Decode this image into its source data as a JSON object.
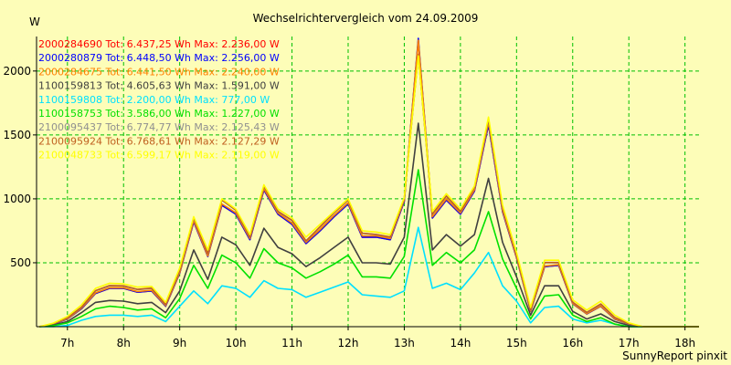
{
  "chart_data": {
    "type": "line",
    "title": "Wechselrichtervergleich vom 24.09.2009",
    "ylabel": "W",
    "footer": "SunnyReport pinxit",
    "ylim": [
      0,
      2270
    ],
    "yticks": [
      500,
      1000,
      1500,
      2000
    ],
    "xlim": [
      6.45,
      18.25
    ],
    "xticks": [
      7,
      8,
      9,
      10,
      11,
      12,
      13,
      14,
      15,
      16,
      17,
      18
    ],
    "xtick_labels": [
      "7h",
      "8h",
      "9h",
      "10h",
      "11h",
      "12h",
      "13h",
      "14h",
      "15h",
      "16h",
      "17h",
      "18h"
    ],
    "grid": true,
    "legend_position": "top-left",
    "x": [
      6.5,
      6.75,
      7.0,
      7.25,
      7.5,
      7.75,
      8.0,
      8.25,
      8.5,
      8.75,
      9.0,
      9.25,
      9.5,
      9.75,
      10.0,
      10.25,
      10.5,
      10.75,
      11.0,
      11.25,
      11.5,
      11.75,
      12.0,
      12.25,
      12.5,
      12.75,
      13.0,
      13.25,
      13.5,
      13.75,
      14.0,
      14.25,
      14.5,
      14.75,
      15.0,
      15.25,
      15.5,
      15.75,
      16.0,
      16.25,
      16.5,
      16.75,
      17.0,
      17.25,
      17.5,
      17.75,
      18.0,
      18.25
    ],
    "series": [
      {
        "name": "2000284690",
        "legend": "2000284690 Tot: 6.437,25 Wh Max: 2.236,00 W",
        "color": "#ff0000",
        "values": [
          0,
          20,
          60,
          140,
          260,
          300,
          300,
          270,
          280,
          160,
          420,
          820,
          550,
          950,
          880,
          680,
          1070,
          880,
          800,
          650,
          750,
          860,
          960,
          700,
          700,
          680,
          980,
          2236,
          850,
          990,
          880,
          1060,
          1580,
          900,
          540,
          120,
          470,
          480,
          180,
          100,
          160,
          60,
          20,
          0,
          0,
          0,
          0,
          0
        ]
      },
      {
        "name": "2000280879",
        "legend": "2000280879 Tot: 6.448,50 Wh Max: 2.256,00 W",
        "color": "#0000ff",
        "values": [
          0,
          20,
          60,
          140,
          260,
          300,
          300,
          270,
          280,
          160,
          420,
          820,
          550,
          950,
          880,
          680,
          1070,
          880,
          800,
          650,
          750,
          860,
          960,
          700,
          700,
          680,
          980,
          2256,
          850,
          990,
          880,
          1060,
          1580,
          900,
          540,
          120,
          470,
          480,
          180,
          100,
          160,
          60,
          20,
          0,
          0,
          0,
          0,
          0
        ]
      },
      {
        "name": "2000284675",
        "legend": "2000284675 Tot: 6.441,50 Wh Max: 2.240,00 W",
        "color": "#ff8000",
        "values": [
          0,
          22,
          62,
          145,
          265,
          305,
          305,
          275,
          285,
          165,
          425,
          830,
          555,
          960,
          890,
          690,
          1080,
          890,
          810,
          660,
          760,
          870,
          970,
          710,
          710,
          690,
          990,
          2240,
          860,
          1000,
          890,
          1070,
          1600,
          910,
          545,
          122,
          475,
          485,
          182,
          102,
          162,
          62,
          20,
          0,
          0,
          0,
          0,
          0
        ]
      },
      {
        "name": "1100159813",
        "legend": "1100159813 Tot: 4.605,63 Wh Max: 1.591,00 W",
        "color": "#404040",
        "values": [
          0,
          12,
          40,
          110,
          190,
          205,
          200,
          180,
          190,
          110,
          280,
          600,
          370,
          700,
          640,
          480,
          770,
          620,
          570,
          470,
          540,
          620,
          700,
          500,
          500,
          490,
          700,
          1591,
          600,
          720,
          630,
          720,
          1160,
          660,
          390,
          90,
          320,
          320,
          120,
          60,
          100,
          40,
          10,
          0,
          0,
          0,
          0,
          0
        ]
      },
      {
        "name": "1100159808",
        "legend": "1100159808 Tot: 2.200,00 Wh Max: 777,00 W",
        "color": "#00e0ff",
        "values": [
          0,
          0,
          10,
          50,
          80,
          90,
          90,
          80,
          90,
          40,
          160,
          280,
          180,
          320,
          300,
          230,
          360,
          300,
          290,
          230,
          270,
          310,
          350,
          250,
          240,
          230,
          280,
          777,
          300,
          340,
          290,
          420,
          580,
          320,
          200,
          30,
          150,
          160,
          60,
          30,
          50,
          20,
          0,
          0,
          0,
          0,
          0,
          0
        ]
      },
      {
        "name": "1100158753",
        "legend": "1100158753 Tot: 3.586,00 Wh Max: 1.227,00 W",
        "color": "#00e000",
        "values": [
          0,
          8,
          30,
          80,
          140,
          160,
          150,
          130,
          140,
          70,
          220,
          480,
          300,
          560,
          500,
          380,
          610,
          500,
          460,
          380,
          430,
          490,
          560,
          390,
          390,
          380,
          550,
          1227,
          480,
          580,
          500,
          600,
          900,
          530,
          300,
          60,
          240,
          250,
          90,
          40,
          70,
          20,
          0,
          0,
          0,
          0,
          0,
          0
        ]
      },
      {
        "name": "2100095437",
        "legend": "2100095437 Tot: 6.774,77 Wh Max: 2.125,43 W",
        "color": "#909090",
        "values": [
          0,
          24,
          68,
          150,
          280,
          320,
          318,
          290,
          300,
          170,
          440,
          850,
          570,
          990,
          910,
          700,
          1100,
          900,
          830,
          670,
          780,
          890,
          990,
          730,
          720,
          700,
          1000,
          2125,
          880,
          1020,
          900,
          1090,
          1620,
          930,
          560,
          130,
          500,
          500,
          190,
          110,
          175,
          70,
          20,
          0,
          0,
          0,
          0,
          0
        ]
      },
      {
        "name": "2100095924",
        "legend": "2100095924 Tot: 6.768,61 Wh Max: 2.127,29 W",
        "color": "#c06020",
        "values": [
          0,
          25,
          70,
          152,
          282,
          322,
          320,
          292,
          302,
          172,
          442,
          852,
          572,
          992,
          912,
          702,
          1102,
          902,
          832,
          672,
          782,
          892,
          992,
          732,
          722,
          702,
          1002,
          2127,
          882,
          1022,
          902,
          1092,
          1625,
          932,
          562,
          132,
          502,
          502,
          192,
          112,
          178,
          72,
          22,
          0,
          0,
          0,
          0,
          0
        ]
      },
      {
        "name": "2100048733",
        "legend": "2100048733 Tot: 6.599,17 Wh Max: 2.119,00 W",
        "color": "#ffff00",
        "values": [
          0,
          28,
          80,
          170,
          300,
          340,
          335,
          310,
          315,
          190,
          460,
          860,
          600,
          1000,
          920,
          720,
          1110,
          920,
          850,
          700,
          800,
          900,
          1000,
          750,
          740,
          720,
          1010,
          2119,
          900,
          1040,
          920,
          1100,
          1640,
          950,
          580,
          150,
          520,
          520,
          210,
          130,
          200,
          90,
          30,
          0,
          0,
          0,
          0,
          0
        ]
      }
    ]
  }
}
